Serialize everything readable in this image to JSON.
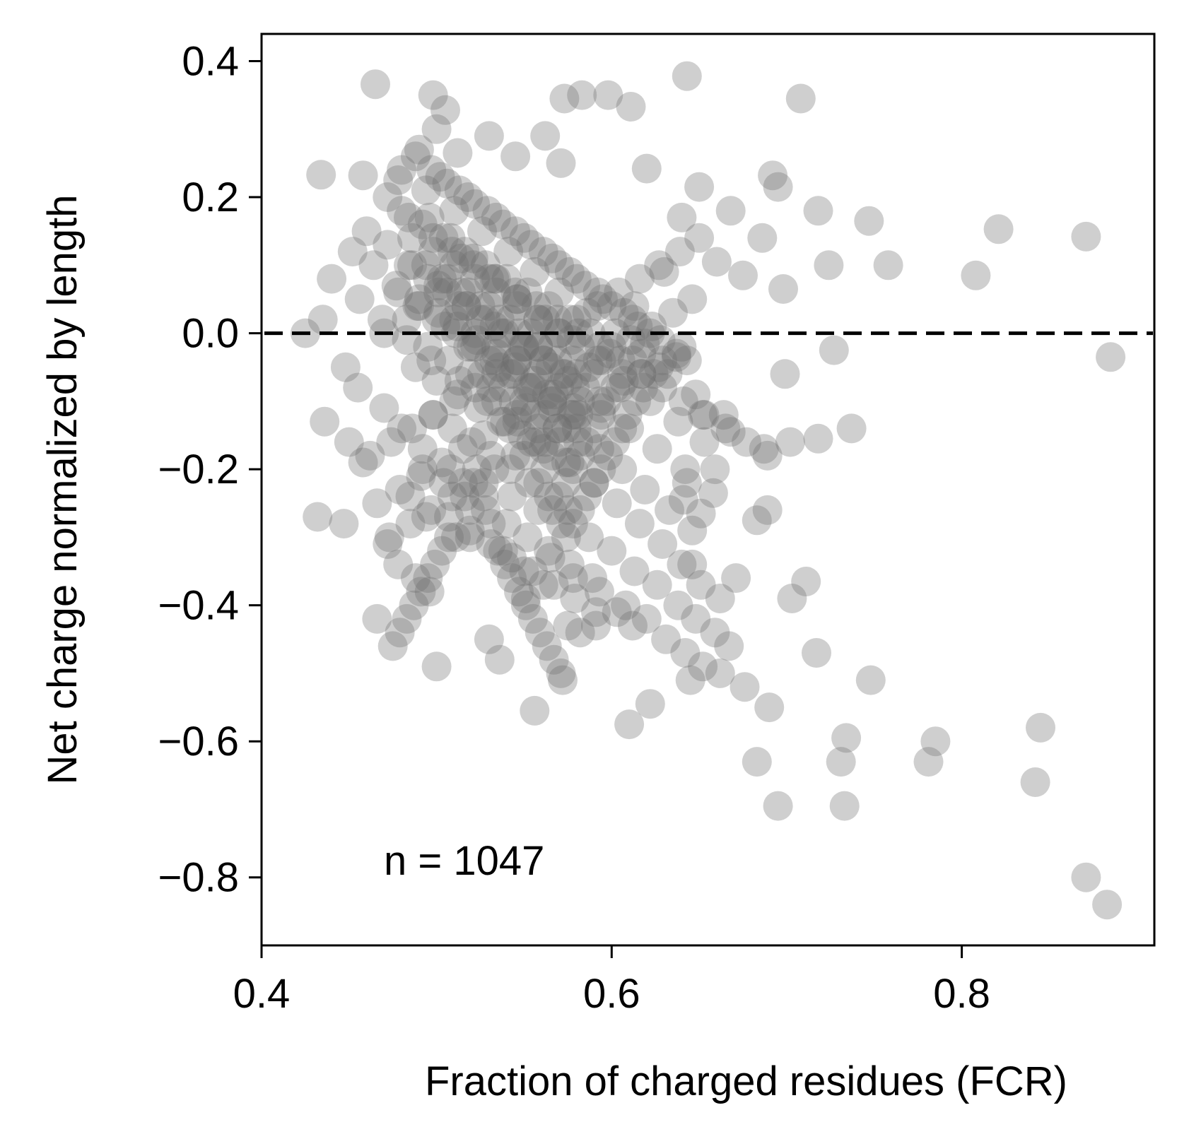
{
  "chart_data": {
    "type": "scatter",
    "title": "",
    "xlabel": "Fraction of charged residues (FCR)",
    "ylabel": "Net charge normalized by length",
    "xlim": [
      0.4,
      0.91
    ],
    "ylim": [
      -0.9,
      0.44
    ],
    "x_ticks": [
      0.4,
      0.6,
      0.8
    ],
    "x_tick_labels": [
      "0.4",
      "0.6",
      "0.8"
    ],
    "y_ticks": [
      0.4,
      0.2,
      0.0,
      -0.2,
      -0.4,
      -0.6,
      -0.8
    ],
    "y_tick_labels": [
      "0.4",
      "0.2",
      "0.0",
      "−0.2",
      "−0.4",
      "−0.6",
      "−0.8"
    ],
    "reference_line": {
      "y": 0.0,
      "style": "dashed",
      "color": "#000000"
    },
    "annotation": "n = 1047",
    "marker_color": "#6e6e6e",
    "marker_alpha": 0.33,
    "grid": false,
    "legend": "none",
    "points": {
      "x": [
        0.465,
        0.498,
        0.505,
        0.573,
        0.583,
        0.598,
        0.611,
        0.643,
        0.708,
        0.434,
        0.458,
        0.478,
        0.49,
        0.5,
        0.512,
        0.53,
        0.545,
        0.562,
        0.571,
        0.62,
        0.65,
        0.692,
        0.695,
        0.718,
        0.747,
        0.758,
        0.808,
        0.821,
        0.871,
        0.64,
        0.668,
        0.686,
        0.724,
        0.66,
        0.675,
        0.698,
        0.885,
        0.727,
        0.718,
        0.737,
        0.702,
        0.668,
        0.687,
        0.699,
        0.683,
        0.641,
        0.651,
        0.658,
        0.646,
        0.671,
        0.703,
        0.711,
        0.717,
        0.748,
        0.731,
        0.781,
        0.785,
        0.683,
        0.69,
        0.733,
        0.695,
        0.734,
        0.842,
        0.845,
        0.871,
        0.883,
        0.689,
        0.659,
        0.643,
        0.652,
        0.627,
        0.637,
        0.619,
        0.613,
        0.63,
        0.556,
        0.572,
        0.61,
        0.622,
        0.645,
        0.432,
        0.447,
        0.466,
        0.472,
        0.478,
        0.488,
        0.496,
        0.5,
        0.53,
        0.536,
        0.551,
        0.561,
        0.575,
        0.582,
        0.591,
        0.603,
        0.612,
        0.436,
        0.45,
        0.458,
        0.485,
        0.494,
        0.519,
        0.538,
        0.55,
        0.565,
        0.578,
        0.593,
        0.608,
        0.62,
        0.631,
        0.642,
        0.652,
        0.662,
        0.676,
        0.425,
        0.435,
        0.448,
        0.455,
        0.47,
        0.48,
        0.492,
        0.508,
        0.527,
        0.543,
        0.558,
        0.571,
        0.587,
        0.6,
        0.613,
        0.626,
        0.638,
        0.648,
        0.659,
        0.667,
        0.44,
        0.456,
        0.469,
        0.483,
        0.497,
        0.513,
        0.529,
        0.546,
        0.562,
        0.576,
        0.59,
        0.603,
        0.616,
        0.629,
        0.64,
        0.651,
        0.662,
        0.452,
        0.464,
        0.477,
        0.49,
        0.505,
        0.52,
        0.536,
        0.552,
        0.566,
        0.58,
        0.593,
        0.606,
        0.619,
        0.633,
        0.646,
        0.46,
        0.472,
        0.486,
        0.501,
        0.517,
        0.533,
        0.55,
        0.565,
        0.579,
        0.594,
        0.61,
        0.626,
        0.642,
        0.472,
        0.484,
        0.498,
        0.514,
        0.53,
        0.546,
        0.562,
        0.577,
        0.592,
        0.607,
        0.622,
        0.638,
        0.653,
        0.48,
        0.494,
        0.51,
        0.526,
        0.541,
        0.556,
        0.57,
        0.586,
        0.602,
        0.617,
        0.632,
        0.648,
        0.664,
        0.488,
        0.502,
        0.518,
        0.534,
        0.55,
        0.566,
        0.58,
        0.595,
        0.612,
        0.628,
        0.643,
        0.497,
        0.513,
        0.529,
        0.545,
        0.561,
        0.576,
        0.592,
        0.607,
        0.622,
        0.637,
        0.506,
        0.522,
        0.538,
        0.554,
        0.57,
        0.585,
        0.6,
        0.615,
        0.496,
        0.508,
        0.521,
        0.534,
        0.546,
        0.558,
        0.47,
        0.483,
        0.495,
        0.507,
        0.519,
        0.531,
        0.544,
        0.556,
        0.569,
        0.581,
        0.488,
        0.5,
        0.512,
        0.524,
        0.537,
        0.549,
        0.561,
        0.574,
        0.492,
        0.504,
        0.516,
        0.528,
        0.54,
        0.552,
        0.564,
        0.576,
        0.589,
        0.507,
        0.519,
        0.531,
        0.543,
        0.555,
        0.567,
        0.579,
        0.591,
        0.478,
        0.489,
        0.5,
        0.511,
        0.522,
        0.533,
        0.544,
        0.555,
        0.566,
        0.577,
        0.484,
        0.495,
        0.506,
        0.517,
        0.528,
        0.539,
        0.55,
        0.561,
        0.572,
        0.49,
        0.501,
        0.512,
        0.523,
        0.534,
        0.545,
        0.556,
        0.567,
        0.578,
        0.503,
        0.514,
        0.525,
        0.536,
        0.547,
        0.558,
        0.569,
        0.58,
        0.498,
        0.509,
        0.52,
        0.531,
        0.542,
        0.553,
        0.564,
        0.575,
        0.462,
        0.474,
        0.486,
        0.498,
        0.51,
        0.522,
        0.534,
        0.546,
        0.558,
        0.57,
        0.58,
        0.592,
        0.604,
        0.616,
        0.627,
        0.639,
        0.65,
        0.466,
        0.479,
        0.491,
        0.503,
        0.515,
        0.527,
        0.539,
        0.551,
        0.563,
        0.575,
        0.587,
        0.599,
        0.611,
        0.623,
        0.635,
        0.646,
        0.473,
        0.485,
        0.497,
        0.509,
        0.521,
        0.533,
        0.545,
        0.557,
        0.569,
        0.581,
        0.593,
        0.605,
        0.617,
        0.629,
        0.64,
        0.48,
        0.492,
        0.504,
        0.516,
        0.528,
        0.54,
        0.552,
        0.564,
        0.576,
        0.588,
        0.6,
        0.612,
        0.624,
        0.486,
        0.498,
        0.51,
        0.522,
        0.534,
        0.546,
        0.558,
        0.57,
        0.582,
        0.594,
        0.606,
        0.618,
        0.494,
        0.506,
        0.518,
        0.53,
        0.542,
        0.554,
        0.566,
        0.578,
        0.59,
        0.602,
        0.614,
        0.501,
        0.513,
        0.525,
        0.537,
        0.549,
        0.561,
        0.573,
        0.585,
        0.597,
        0.609,
        0.51,
        0.522,
        0.534,
        0.546,
        0.558,
        0.57,
        0.582,
        0.594,
        0.606,
        0.518,
        0.53,
        0.542,
        0.554,
        0.566,
        0.578,
        0.59,
        0.602,
        0.526,
        0.538,
        0.55,
        0.562,
        0.574,
        0.586,
        0.598,
        0.534,
        0.546,
        0.558,
        0.57,
        0.582,
        0.594,
        0.542,
        0.554,
        0.566,
        0.578,
        0.59,
        0.55,
        0.562,
        0.574,
        0.586,
        0.558,
        0.57,
        0.582,
        0.566,
        0.578,
        0.574,
        0.523,
        0.515,
        0.527,
        0.519,
        0.531,
        0.511,
        0.535,
        0.507,
        0.539,
        0.503,
        0.543,
        0.499,
        0.547,
        0.495,
        0.551,
        0.491,
        0.555,
        0.487,
        0.559,
        0.483,
        0.563,
        0.479,
        0.567,
        0.475,
        0.571,
        0.509,
        0.521,
        0.533,
        0.545,
        0.557,
        0.569,
        0.581,
        0.593,
        0.605,
        0.617,
        0.629,
        0.641,
        0.653,
        0.665,
        0.677,
        0.689
      ],
      "y": [
        0.366,
        0.35,
        0.328,
        0.345,
        0.35,
        0.35,
        0.333,
        0.378,
        0.345,
        0.233,
        0.232,
        0.225,
        0.27,
        0.3,
        0.265,
        0.29,
        0.26,
        0.29,
        0.25,
        0.242,
        0.215,
        0.232,
        0.215,
        0.18,
        0.165,
        0.1,
        0.085,
        0.153,
        0.142,
        0.17,
        0.18,
        0.14,
        0.1,
        0.105,
        0.085,
        0.065,
        -0.035,
        -0.025,
        -0.155,
        -0.14,
        -0.16,
        -0.145,
        -0.17,
        -0.06,
        -0.275,
        -0.245,
        -0.265,
        -0.235,
        -0.34,
        -0.36,
        -0.39,
        -0.365,
        -0.47,
        -0.51,
        -0.63,
        -0.63,
        -0.6,
        -0.63,
        -0.55,
        -0.695,
        -0.695,
        -0.595,
        -0.66,
        -0.58,
        -0.8,
        -0.84,
        -0.26,
        -0.2,
        -0.22,
        -0.12,
        -0.05,
        -0.035,
        -0.015,
        0.04,
        0.09,
        -0.555,
        -0.51,
        -0.575,
        -0.545,
        -0.51,
        -0.27,
        -0.28,
        -0.42,
        -0.31,
        -0.34,
        -0.36,
        -0.38,
        -0.49,
        -0.45,
        -0.48,
        -0.39,
        -0.37,
        -0.43,
        -0.44,
        -0.43,
        -0.41,
        -0.43,
        -0.13,
        -0.16,
        -0.19,
        -0.24,
        -0.27,
        -0.3,
        -0.32,
        -0.35,
        -0.33,
        -0.36,
        -0.38,
        -0.4,
        -0.42,
        -0.45,
        -0.47,
        -0.49,
        -0.5,
        -0.52,
        0.0,
        0.02,
        -0.05,
        -0.08,
        -0.11,
        -0.14,
        -0.17,
        -0.2,
        -0.22,
        -0.24,
        -0.26,
        -0.28,
        -0.3,
        -0.32,
        -0.35,
        -0.37,
        -0.4,
        -0.42,
        -0.44,
        -0.46,
        0.08,
        0.05,
        0.02,
        -0.01,
        -0.04,
        -0.07,
        -0.1,
        -0.13,
        -0.16,
        -0.19,
        -0.22,
        -0.25,
        -0.28,
        -0.31,
        -0.34,
        -0.37,
        -0.39,
        0.12,
        0.1,
        0.07,
        0.04,
        0.01,
        -0.02,
        -0.05,
        -0.08,
        -0.11,
        -0.14,
        -0.17,
        -0.2,
        -0.23,
        -0.26,
        -0.29,
        0.15,
        0.13,
        0.1,
        0.07,
        0.04,
        0.01,
        -0.02,
        -0.05,
        -0.08,
        -0.11,
        -0.14,
        -0.17,
        -0.2,
        0.2,
        0.17,
        0.14,
        0.11,
        0.08,
        0.05,
        0.02,
        -0.01,
        -0.04,
        -0.07,
        -0.1,
        -0.13,
        -0.16,
        0.24,
        0.21,
        0.18,
        0.15,
        0.12,
        0.09,
        0.06,
        0.03,
        0.0,
        -0.03,
        -0.06,
        -0.09,
        -0.12,
        0.26,
        0.23,
        0.2,
        0.17,
        0.14,
        0.11,
        0.08,
        0.05,
        0.02,
        -0.01,
        -0.04,
        0.24,
        0.21,
        0.18,
        0.15,
        0.12,
        0.09,
        0.06,
        0.03,
        0.0,
        -0.03,
        0.22,
        0.19,
        0.16,
        0.13,
        0.1,
        0.07,
        0.04,
        0.01,
        0.17,
        0.14,
        0.11,
        0.08,
        0.05,
        0.02,
        0.0,
        0.02,
        -0.02,
        -0.04,
        -0.06,
        -0.08,
        -0.1,
        -0.12,
        -0.14,
        -0.16,
        -0.05,
        -0.07,
        -0.09,
        -0.11,
        -0.13,
        -0.15,
        -0.17,
        -0.19,
        -0.2,
        -0.22,
        -0.24,
        -0.26,
        -0.28,
        -0.3,
        -0.32,
        -0.34,
        -0.36,
        -0.27,
        -0.29,
        -0.31,
        -0.33,
        -0.35,
        -0.37,
        -0.39,
        -0.41,
        0.06,
        0.04,
        0.02,
        0.0,
        -0.02,
        -0.04,
        -0.06,
        -0.08,
        -0.1,
        -0.12,
        0.1,
        0.08,
        0.06,
        0.04,
        0.02,
        0.0,
        -0.02,
        -0.04,
        -0.06,
        0.05,
        0.03,
        0.01,
        -0.01,
        -0.03,
        -0.05,
        -0.07,
        -0.09,
        -0.11,
        0.08,
        0.06,
        0.04,
        0.02,
        0.0,
        -0.02,
        -0.04,
        -0.06,
        -0.12,
        -0.14,
        -0.16,
        -0.18,
        -0.2,
        -0.22,
        -0.24,
        -0.26,
        -0.18,
        -0.16,
        -0.14,
        -0.12,
        -0.1,
        -0.08,
        -0.06,
        -0.04,
        -0.02,
        0.0,
        0.02,
        0.04,
        0.06,
        0.08,
        0.1,
        0.12,
        0.14,
        -0.25,
        -0.23,
        -0.21,
        -0.19,
        -0.17,
        -0.15,
        -0.13,
        -0.11,
        -0.09,
        -0.07,
        -0.05,
        -0.03,
        -0.01,
        0.01,
        0.03,
        0.05,
        -0.3,
        -0.28,
        -0.26,
        -0.24,
        -0.22,
        -0.2,
        -0.18,
        -0.16,
        -0.14,
        -0.12,
        -0.1,
        -0.08,
        -0.06,
        -0.04,
        -0.02,
        0.18,
        0.16,
        0.14,
        0.12,
        0.1,
        0.08,
        0.06,
        0.04,
        0.02,
        0.0,
        -0.02,
        -0.04,
        -0.06,
        0.14,
        0.12,
        0.1,
        0.08,
        0.06,
        0.04,
        0.02,
        0.0,
        -0.02,
        -0.04,
        -0.06,
        -0.08,
        0.1,
        0.08,
        0.06,
        0.04,
        0.02,
        0.0,
        -0.02,
        -0.04,
        -0.06,
        -0.08,
        -0.1,
        0.06,
        0.04,
        0.02,
        0.0,
        -0.02,
        -0.04,
        -0.06,
        -0.08,
        -0.1,
        -0.12,
        0.02,
        0.0,
        -0.02,
        -0.04,
        -0.06,
        -0.08,
        -0.1,
        -0.12,
        -0.14,
        -0.02,
        -0.04,
        -0.06,
        -0.08,
        -0.1,
        -0.12,
        -0.14,
        -0.16,
        -0.06,
        -0.08,
        -0.1,
        -0.12,
        -0.14,
        -0.16,
        -0.18,
        -0.1,
        -0.12,
        -0.14,
        -0.16,
        -0.18,
        -0.2,
        -0.14,
        -0.16,
        -0.18,
        -0.2,
        -0.22,
        -0.18,
        -0.2,
        -0.22,
        -0.24,
        -0.22,
        -0.24,
        -0.26,
        -0.26,
        -0.28,
        -0.3,
        -0.2,
        -0.22,
        -0.24,
        -0.26,
        -0.28,
        -0.3,
        -0.32,
        -0.3,
        -0.34,
        -0.32,
        -0.36,
        -0.34,
        -0.38,
        -0.36,
        -0.4,
        -0.38,
        -0.42,
        -0.4,
        -0.44,
        -0.42,
        -0.46,
        -0.44,
        -0.48,
        -0.46,
        -0.5,
        0.12,
        0.1,
        0.08,
        0.06,
        0.04,
        0.02,
        0.0,
        -0.02,
        -0.04,
        -0.06,
        -0.08,
        -0.1,
        -0.12,
        -0.14,
        -0.16,
        -0.18
      ]
    }
  }
}
